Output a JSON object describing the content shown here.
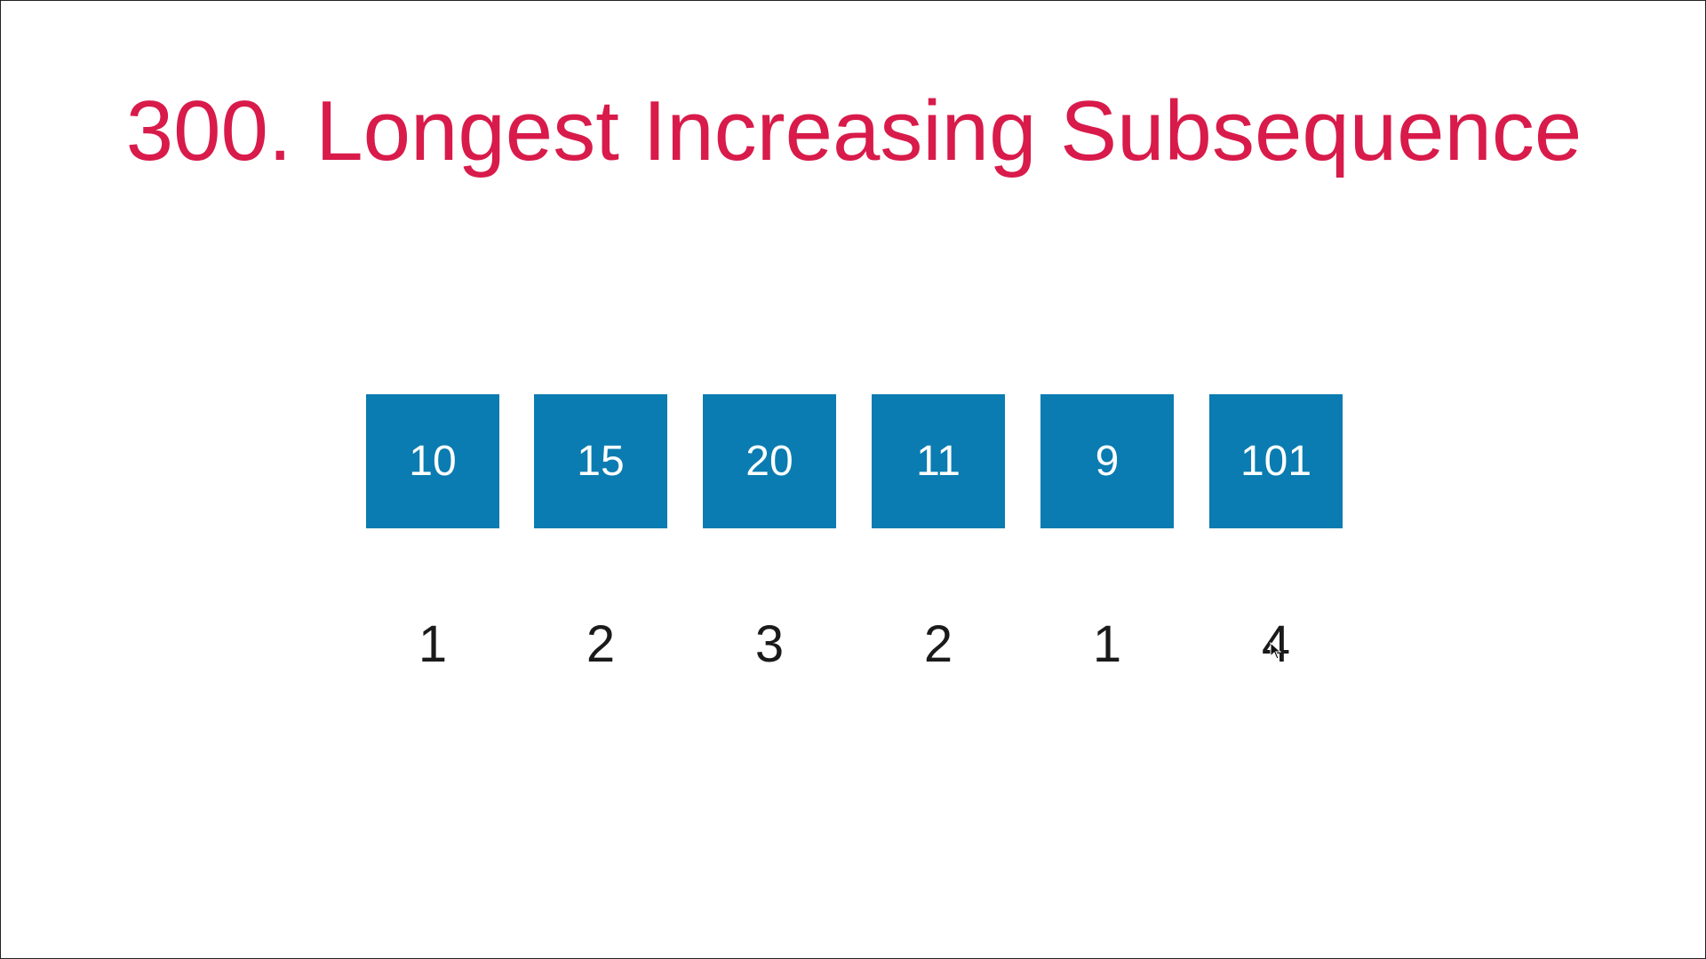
{
  "title": "300. Longest Increasing Subsequence",
  "nums": [
    "10",
    "15",
    "20",
    "11",
    "9",
    "101"
  ],
  "dp": [
    "1",
    "2",
    "3",
    "2",
    "1",
    "4"
  ],
  "colors": {
    "title": "#d81b4a",
    "cell": "#0a7cb1",
    "cell_text": "#ffffff",
    "dp_text": "#1a1a1a"
  },
  "icons": {
    "cursor": "mouse-pointer-icon"
  }
}
